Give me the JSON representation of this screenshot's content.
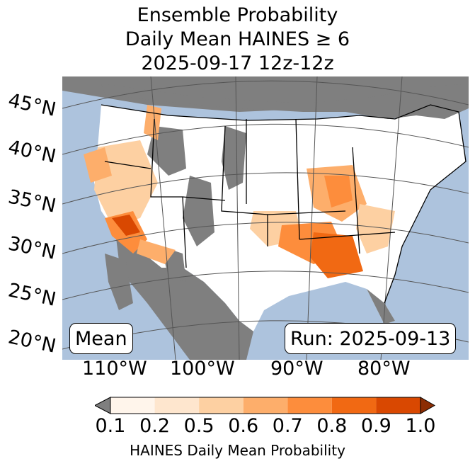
{
  "title": {
    "line1": "Ensemble Probability",
    "line2": "Daily Mean HAINES ≥ 6",
    "line3": "2025-09-17 12z-12z"
  },
  "map": {
    "region": "CONUS",
    "lat_labels": [
      "45°N",
      "40°N",
      "35°N",
      "30°N",
      "25°N",
      "20°N"
    ],
    "lon_labels": [
      "110°W",
      "100°W",
      "90°W",
      "80°W"
    ],
    "stat_label": "Mean",
    "run_label": "Run: 2025-09-13",
    "colors": {
      "ocean": "#adc3dd",
      "no_data": "#7f7f7f",
      "land": "#ffffff"
    }
  },
  "colorbar": {
    "label": "HAINES Daily Mean Probability",
    "ticks": [
      "0.1",
      "0.2",
      "0.5",
      "0.6",
      "0.7",
      "0.8",
      "0.9",
      "1.0"
    ],
    "colors": [
      "#fff5eb",
      "#fee6ce",
      "#fdd0a2",
      "#fdae6b",
      "#fd8d3c",
      "#f16913",
      "#d94801",
      "#8c2d04"
    ],
    "under_color": "#7f7f7f"
  }
}
